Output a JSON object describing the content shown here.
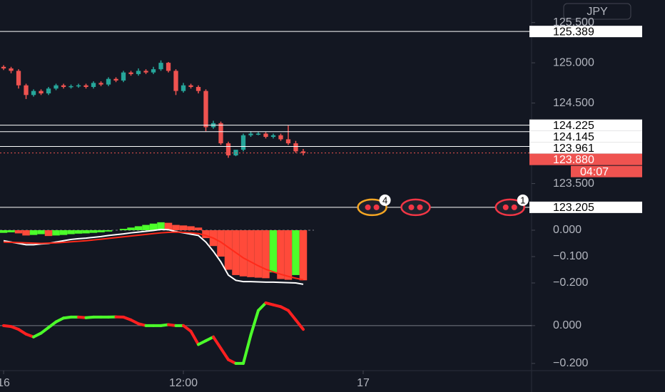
{
  "chart_data": [
    {
      "type": "candlestick",
      "currency": "JPY",
      "x": [
        0,
        0.5,
        1,
        1.5,
        2,
        2.5,
        3,
        3.5,
        4,
        4.5,
        5,
        5.5,
        6,
        6.5,
        7,
        7.5,
        8,
        8.5,
        9,
        9.5,
        10,
        10.5,
        11,
        11.5,
        12,
        12.5,
        13,
        13.5,
        14,
        14.5,
        15,
        15.5,
        16,
        16.5,
        17,
        17.5,
        18,
        18.5,
        19,
        19.5,
        20
      ],
      "open": [
        124.95,
        124.93,
        124.9,
        124.72,
        124.6,
        124.65,
        124.62,
        124.68,
        124.72,
        124.7,
        124.71,
        124.72,
        124.7,
        124.75,
        124.73,
        124.8,
        124.78,
        124.88,
        124.86,
        124.9,
        124.88,
        124.92,
        125.0,
        124.9,
        124.65,
        124.72,
        124.7,
        124.65,
        124.2,
        124.25,
        124.0,
        123.85,
        123.92,
        124.1,
        124.12,
        124.12,
        124.08,
        124.1,
        124.05,
        124.0,
        123.9
      ],
      "high": [
        124.97,
        124.95,
        124.92,
        124.74,
        124.67,
        124.67,
        124.7,
        124.74,
        124.74,
        124.73,
        124.74,
        124.74,
        124.77,
        124.77,
        124.82,
        124.82,
        124.9,
        124.9,
        124.93,
        124.92,
        124.95,
        125.03,
        125.01,
        124.92,
        124.75,
        124.74,
        124.72,
        124.67,
        124.28,
        124.27,
        124.02,
        123.9,
        124.12,
        124.15,
        124.14,
        124.14,
        124.12,
        124.12,
        124.22,
        124.03,
        123.93
      ],
      "low": [
        124.91,
        124.87,
        124.68,
        124.55,
        124.58,
        124.6,
        124.6,
        124.66,
        124.68,
        124.68,
        124.69,
        124.68,
        124.68,
        124.71,
        124.71,
        124.76,
        124.76,
        124.84,
        124.84,
        124.86,
        124.86,
        124.9,
        124.88,
        124.6,
        124.63,
        124.68,
        124.62,
        124.15,
        124.18,
        123.98,
        123.82,
        123.84,
        123.9,
        124.08,
        124.1,
        124.06,
        124.06,
        124.03,
        123.98,
        123.88,
        123.85
      ],
      "close": [
        124.93,
        124.9,
        124.72,
        124.6,
        124.65,
        124.62,
        124.68,
        124.72,
        124.7,
        124.71,
        124.72,
        124.7,
        124.75,
        124.73,
        124.8,
        124.78,
        124.88,
        124.86,
        124.9,
        124.88,
        124.92,
        125.0,
        124.9,
        124.65,
        124.72,
        124.7,
        124.65,
        124.2,
        124.25,
        124.0,
        123.85,
        123.92,
        124.1,
        124.12,
        124.12,
        124.08,
        124.1,
        124.05,
        124.0,
        123.9,
        123.88
      ],
      "up_color": "#26a69a",
      "down_color": "#ef5350",
      "xlim": [
        -0.24,
        35.24
      ],
      "xticks": [
        {
          "value": 0,
          "label": "16"
        },
        {
          "value": 12,
          "label": "12:00"
        },
        {
          "value": 24,
          "label": "17"
        }
      ],
      "ylim": [
        123.08,
        125.78
      ],
      "yticks": [
        {
          "value": 125.5,
          "label": "125.500"
        },
        {
          "value": 125,
          "label": "125.000"
        },
        {
          "value": 124.5,
          "label": "124.500"
        },
        {
          "value": 123.5,
          "label": "123.500"
        }
      ],
      "price_lines": [
        125.389,
        124.225,
        124.145,
        123.961,
        123.205
      ],
      "last_price": {
        "value": 123.88,
        "label": "123.880"
      },
      "countdown": "04:07",
      "events": [
        {
          "x": 24.6,
          "badge": "4"
        },
        {
          "x": 27.5
        },
        {
          "x": 33.8,
          "badge": "1"
        }
      ]
    },
    {
      "type": "macd",
      "histogram": [
        -0.01,
        -0.008,
        -0.012,
        -0.02,
        -0.018,
        -0.015,
        -0.022,
        -0.02,
        -0.018,
        -0.015,
        -0.013,
        -0.012,
        -0.01,
        -0.008,
        -0.005,
        0.0,
        0.005,
        0.01,
        0.015,
        0.02,
        0.025,
        0.03,
        0.028,
        0.02,
        0.018,
        0.015,
        0.01,
        -0.03,
        -0.06,
        -0.1,
        -0.15,
        -0.17,
        -0.175,
        -0.178,
        -0.18,
        -0.182,
        -0.16,
        -0.185,
        -0.188,
        -0.17,
        -0.19
      ],
      "series": [
        {
          "color": "#ffffff",
          "values": [
            -0.04,
            -0.045,
            -0.05,
            -0.055,
            -0.055,
            -0.052,
            -0.05,
            -0.045,
            -0.04,
            -0.035,
            -0.032,
            -0.03,
            -0.027,
            -0.024,
            -0.02,
            -0.017,
            -0.014,
            -0.01,
            -0.007,
            -0.004,
            -0.001,
            0.003,
            0.002,
            -0.005,
            -0.01,
            -0.015,
            -0.02,
            -0.045,
            -0.08,
            -0.12,
            -0.17,
            -0.19,
            -0.195,
            -0.195,
            -0.196,
            -0.197,
            -0.197,
            -0.198,
            -0.199,
            -0.2,
            -0.205
          ]
        },
        {
          "color": "#ff2a1a",
          "values": [
            -0.045,
            -0.046,
            -0.047,
            -0.048,
            -0.049,
            -0.05,
            -0.049,
            -0.048,
            -0.046,
            -0.044,
            -0.042,
            -0.04,
            -0.037,
            -0.034,
            -0.031,
            -0.028,
            -0.025,
            -0.022,
            -0.019,
            -0.016,
            -0.013,
            -0.01,
            -0.008,
            -0.007,
            -0.008,
            -0.01,
            -0.013,
            -0.02,
            -0.03,
            -0.045,
            -0.065,
            -0.085,
            -0.105,
            -0.12,
            -0.135,
            -0.148,
            -0.158,
            -0.167,
            -0.175,
            -0.182,
            -0.188
          ]
        }
      ],
      "rise_color": "#4cff2a",
      "fall_color": "#ff4a3a",
      "ylim": [
        -0.2486,
        0.0486
      ],
      "yticks": [
        {
          "value": 0,
          "label": "0.000"
        },
        {
          "value": -0.1,
          "label": "−0.100"
        },
        {
          "value": -0.2,
          "label": "−0.200"
        }
      ]
    },
    {
      "type": "line",
      "values": [
        0.0,
        -0.005,
        -0.02,
        -0.045,
        -0.06,
        -0.04,
        -0.01,
        0.02,
        0.04,
        0.045,
        0.045,
        0.042,
        0.045,
        0.045,
        0.045,
        0.046,
        0.045,
        0.03,
        0.01,
        0.0,
        0.0,
        0.0,
        0.005,
        0.0,
        0.0,
        -0.03,
        -0.1,
        -0.08,
        -0.06,
        -0.12,
        -0.18,
        -0.2,
        -0.2,
        -0.05,
        0.08,
        0.12,
        0.11,
        0.1,
        0.08,
        0.03,
        -0.02
      ],
      "rise_color": "#4cff2a",
      "fall_color": "#ff2020",
      "ylim": [
        -0.238,
        0.12
      ],
      "yticks": [
        {
          "value": 0,
          "label": "0.000"
        },
        {
          "value": -0.2,
          "label": "−0.200"
        }
      ]
    }
  ]
}
